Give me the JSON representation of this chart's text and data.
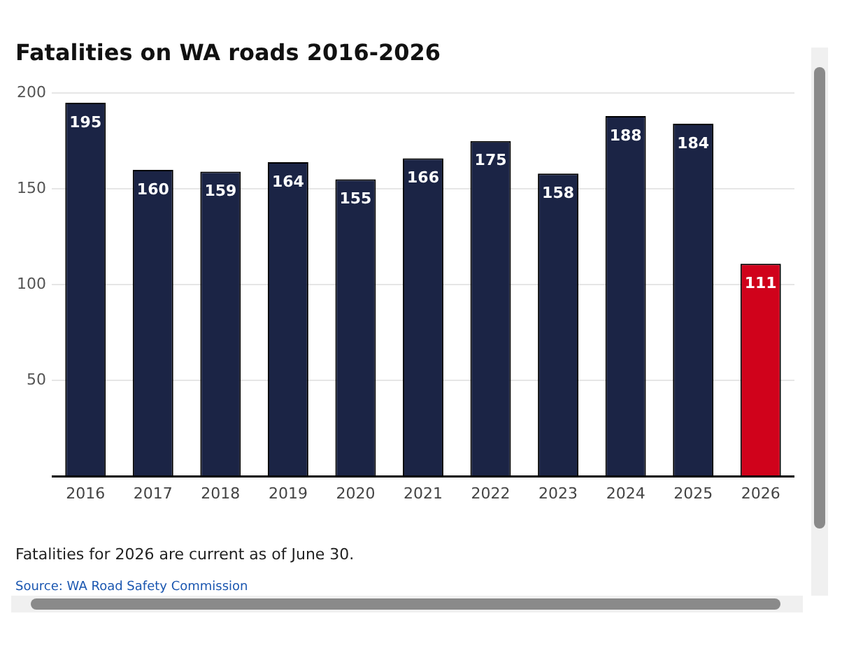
{
  "chart_data": {
    "type": "bar",
    "title": "Fatalities on WA roads 2016-2026",
    "categories": [
      "2016",
      "2017",
      "2018",
      "2019",
      "2020",
      "2021",
      "2022",
      "2023",
      "2024",
      "2025",
      "2026"
    ],
    "values": [
      195,
      160,
      159,
      164,
      155,
      166,
      175,
      158,
      188,
      184,
      111
    ],
    "colors": [
      "#1b2445",
      "#1b2445",
      "#1b2445",
      "#1b2445",
      "#1b2445",
      "#1b2445",
      "#1b2445",
      "#1b2445",
      "#1b2445",
      "#1b2445",
      "#d0021b"
    ],
    "ylim": [
      0,
      200
    ],
    "yticks": [
      {
        "value": 0,
        "label": null
      },
      50,
      100,
      150,
      200
    ],
    "grid": "y",
    "legend": false,
    "data_labels": true,
    "annotations": [
      "Fatalities for 2026 are current as of June 30.",
      "Source: WA Road Safety Commission"
    ]
  }
}
